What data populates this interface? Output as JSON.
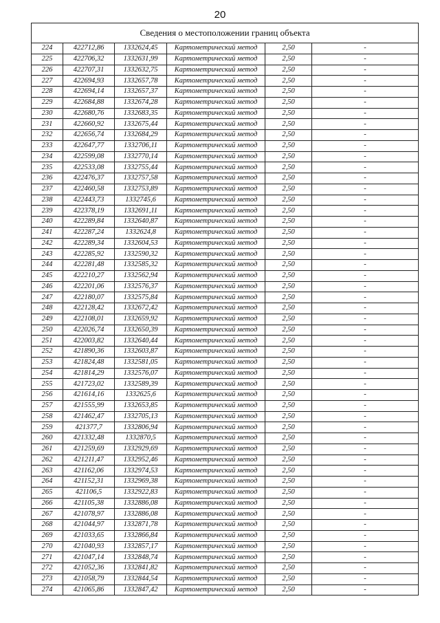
{
  "page_number": "20",
  "table": {
    "title": "Сведения о местоположении границ объекта",
    "rows": [
      [
        "224",
        "422712,86",
        "1332624,45"
      ],
      [
        "225",
        "422706,32",
        "1332631,99"
      ],
      [
        "226",
        "422707,31",
        "1332632,75"
      ],
      [
        "227",
        "422694,93",
        "1332657,78"
      ],
      [
        "228",
        "422694,14",
        "1332657,37"
      ],
      [
        "229",
        "422684,88",
        "1332674,28"
      ],
      [
        "230",
        "422680,76",
        "1332683,35"
      ],
      [
        "231",
        "422660,92",
        "1332675,44"
      ],
      [
        "232",
        "422656,74",
        "1332684,29"
      ],
      [
        "233",
        "422647,77",
        "1332706,11"
      ],
      [
        "234",
        "422599,08",
        "1332770,14"
      ],
      [
        "235",
        "422533,08",
        "1332755,44"
      ],
      [
        "236",
        "422476,37",
        "1332757,58"
      ],
      [
        "237",
        "422460,58",
        "1332753,89"
      ],
      [
        "238",
        "422443,73",
        "1332745,6"
      ],
      [
        "239",
        "422378,19",
        "1332691,11"
      ],
      [
        "240",
        "422289,84",
        "1332640,87"
      ],
      [
        "241",
        "422287,24",
        "1332624,8"
      ],
      [
        "242",
        "422289,34",
        "1332604,53"
      ],
      [
        "243",
        "422285,92",
        "1332590,32"
      ],
      [
        "244",
        "422281,48",
        "1332585,32"
      ],
      [
        "245",
        "422210,27",
        "1332562,94"
      ],
      [
        "246",
        "422201,06",
        "1332576,37"
      ],
      [
        "247",
        "422180,07",
        "1332575,84"
      ],
      [
        "248",
        "422128,42",
        "1332672,42"
      ],
      [
        "249",
        "422108,01",
        "1332659,92"
      ],
      [
        "250",
        "422026,74",
        "1332650,39"
      ],
      [
        "251",
        "422003,82",
        "1332640,44"
      ],
      [
        "252",
        "421890,36",
        "1332603,87"
      ],
      [
        "253",
        "421824,48",
        "1332581,05"
      ],
      [
        "254",
        "421814,29",
        "1332576,07"
      ],
      [
        "255",
        "421723,02",
        "1332589,39"
      ],
      [
        "256",
        "421614,16",
        "1332625,6"
      ],
      [
        "257",
        "421555,99",
        "1332653,85"
      ],
      [
        "258",
        "421462,47",
        "1332705,13"
      ],
      [
        "259",
        "421377,7",
        "1332806,94"
      ],
      [
        "260",
        "421332,48",
        "1332870,5"
      ],
      [
        "261",
        "421259,69",
        "1332929,69"
      ],
      [
        "262",
        "421211,47",
        "1332952,46"
      ],
      [
        "263",
        "421162,06",
        "1332974,53"
      ],
      [
        "264",
        "421152,31",
        "1332969,38"
      ],
      [
        "265",
        "421106,5",
        "1332922,83"
      ],
      [
        "266",
        "421105,38",
        "1332886,08"
      ],
      [
        "267",
        "421078,97",
        "1332886,08"
      ],
      [
        "268",
        "421044,97",
        "1332871,78"
      ],
      [
        "269",
        "421033,65",
        "1332866,84"
      ],
      [
        "270",
        "421040,93",
        "1332857,17"
      ],
      [
        "271",
        "421047,14",
        "1332848,74"
      ],
      [
        "272",
        "421052,36",
        "1332841,82"
      ],
      [
        "273",
        "421058,79",
        "1332844,54"
      ],
      [
        "274",
        "421065,86",
        "1332847,42"
      ]
    ],
    "method": "Картометрический метод",
    "precision": "2,50",
    "empty_mark": "-"
  }
}
